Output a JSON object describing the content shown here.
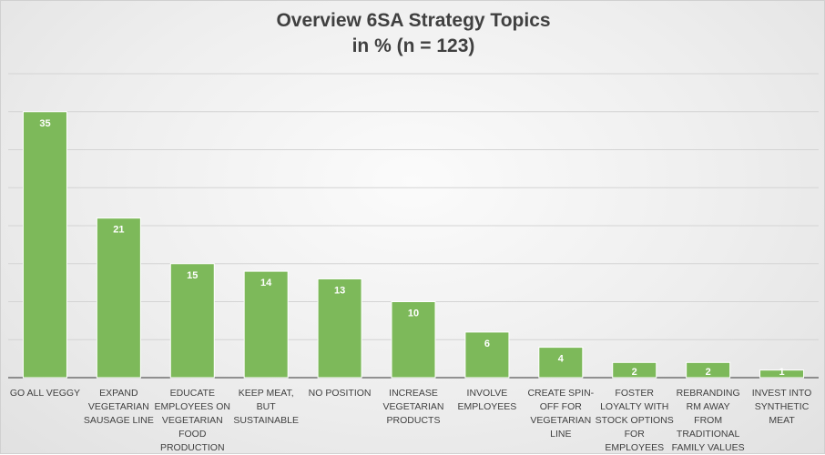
{
  "chart_data": {
    "type": "bar",
    "title": "Overview 6SA Strategy Topics",
    "subtitle": "in % (n = 123)",
    "xlabel": "",
    "ylabel": "",
    "ylim": [
      0,
      40
    ],
    "grid": true,
    "legend": "none",
    "bar_color": "#7db95a",
    "bar_edge_color": "#ffffff",
    "categories": [
      "GO ALL VEGGY",
      "EXPAND VEGETARIAN SAUSAGE LINE",
      "EDUCATE EMPLOYEES ON VEGETARIAN FOOD PRODUCTION",
      "KEEP MEAT, BUT SUSTAINABLE",
      "NO POSITION",
      "INCREASE VEGETARIAN PRODUCTS",
      "INVOLVE EMPLOYEES",
      "CREATE SPIN-OFF FOR VEGETARIAN LINE",
      "FOSTER LOYALTY WITH STOCK OPTIONS FOR EMPLOYEES",
      "REBRANDING RM AWAY FROM TRADITIONAL FAMILY VALUES",
      "INVEST INTO SYNTHETIC MEAT"
    ],
    "category_lines": [
      [
        "GO ALL VEGGY"
      ],
      [
        "EXPAND",
        "VEGETARIAN",
        "SAUSAGE LINE"
      ],
      [
        "EDUCATE",
        "EMPLOYEES ON",
        "VEGETARIAN",
        "FOOD",
        "PRODUCTION"
      ],
      [
        "KEEP MEAT,",
        "BUT",
        "SUSTAINABLE"
      ],
      [
        "NO POSITION"
      ],
      [
        "INCREASE",
        "VEGETARIAN",
        "PRODUCTS"
      ],
      [
        "INVOLVE",
        "EMPLOYEES"
      ],
      [
        "CREATE SPIN-",
        "OFF FOR",
        "VEGETARIAN",
        "LINE"
      ],
      [
        "FOSTER",
        "LOYALTY WITH",
        "STOCK OPTIONS",
        "FOR",
        "EMPLOYEES"
      ],
      [
        "REBRANDING",
        "RM AWAY",
        "FROM",
        "TRADITIONAL",
        "FAMILY VALUES"
      ],
      [
        "INVEST INTO",
        "SYNTHETIC",
        "MEAT"
      ]
    ],
    "values": [
      35,
      21,
      15,
      14,
      13,
      10,
      6,
      4,
      2,
      2,
      1
    ],
    "data_labels": [
      "35",
      "21",
      "15",
      "14",
      "13",
      "10",
      "6",
      "4",
      "2",
      "2",
      "1"
    ]
  }
}
